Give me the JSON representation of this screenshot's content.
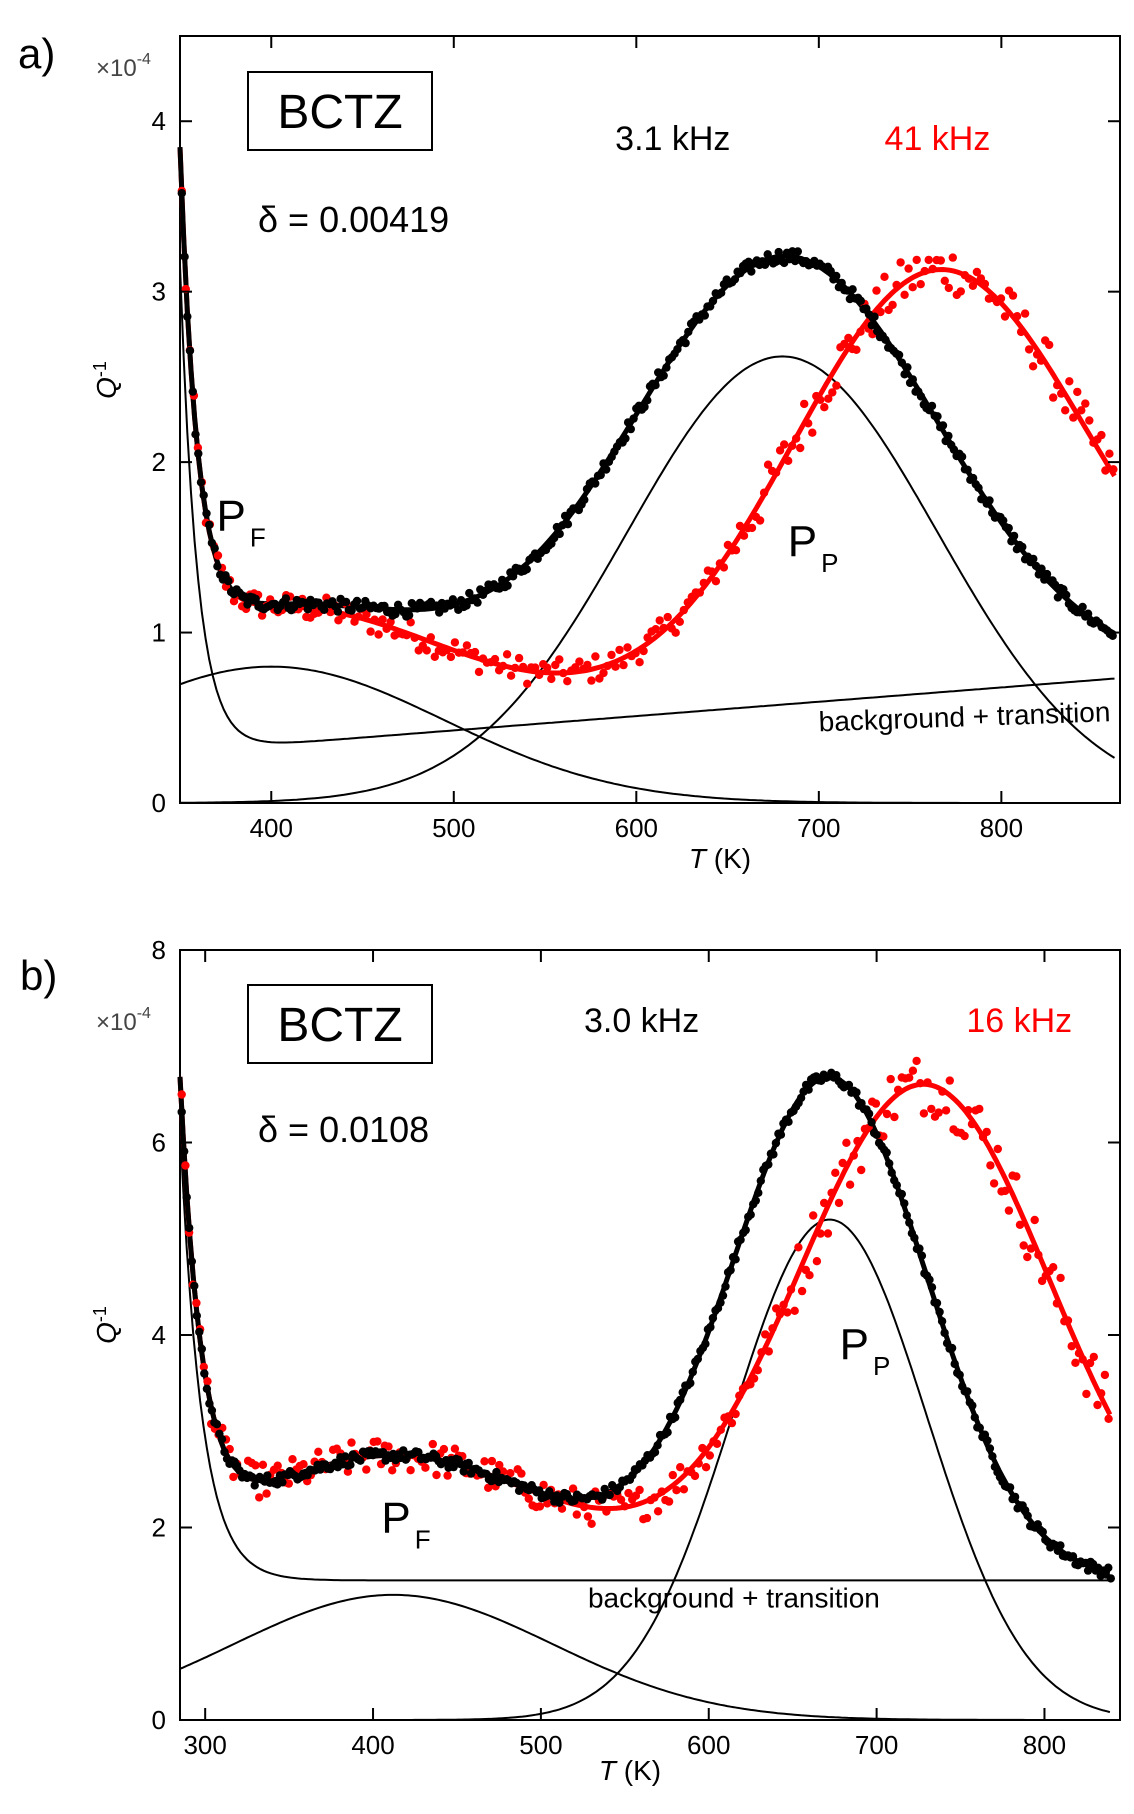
{
  "chart_data": [
    {
      "panel_label": "a)",
      "type": "scatter",
      "box_label": "BCTZ",
      "delta_text": "δ = 0.00419",
      "multiplier_text": "×10",
      "multiplier_exp": "-4",
      "xlabel_italic": "T",
      "xlabel_unit": " (K)",
      "ylabel_main": "Q",
      "ylabel_sup": "-1",
      "xlim": [
        350,
        865
      ],
      "ylim": [
        0,
        4.5
      ],
      "xticks": [
        400,
        500,
        600,
        700,
        800
      ],
      "yticks": [
        0,
        1,
        2,
        3,
        4
      ],
      "peak_labels": [
        {
          "main": "P",
          "sub": "F",
          "x": 370,
          "y": 1.6
        },
        {
          "main": "P",
          "sub": "P",
          "x": 683,
          "y": 1.45
        }
      ],
      "background_label": {
        "text": "background + transition",
        "x": 780,
        "y": 0.45
      },
      "series": [
        {
          "name": "3.1 kHz",
          "color": "#000000",
          "label_x": 620,
          "label_y": 3.83,
          "b0": 0.3,
          "b1": 0.00084,
          "c_amp": 2.85,
          "c_tau": 9.5,
          "tmin": 350,
          "pf_amp": 0.8,
          "pf_center": 400,
          "pf_width": 95,
          "pp_amp": 2.62,
          "pp_center": 680,
          "pp_width": 85,
          "data_range": [
            350,
            862
          ],
          "noise": 0.04
        }
      ],
      "series_red": [
        {
          "name": "41 kHz",
          "color": "#ff0000",
          "label_x": 765,
          "label_y": 3.83,
          "b0": 0.3,
          "b1": 0.00084,
          "c_amp": 2.85,
          "c_tau": 9.5,
          "tmin": 350,
          "pf_amp": 0.8,
          "pf_center": 400,
          "pf_width": 95,
          "pp_amp": 2.48,
          "pp_center": 765,
          "pp_width": 80,
          "data_range": [
            350,
            862
          ],
          "noise": 0.08
        }
      ]
    },
    {
      "panel_label": "b)",
      "type": "scatter",
      "box_label": "BCTZ",
      "delta_text": "δ = 0.0108",
      "multiplier_text": "×10",
      "multiplier_exp": "-4",
      "xlabel_italic": "T",
      "xlabel_unit": " (K)",
      "ylabel_main": "Q",
      "ylabel_sup": "-1",
      "xlim": [
        285,
        845
      ],
      "ylim": [
        0,
        8
      ],
      "xticks": [
        300,
        400,
        500,
        600,
        700,
        800
      ],
      "yticks": [
        0,
        2,
        4,
        6,
        8
      ],
      "peak_labels": [
        {
          "main": "P",
          "sub": "F",
          "x": 405,
          "y": 1.95
        },
        {
          "main": "P",
          "sub": "P",
          "x": 678,
          "y": 3.75
        }
      ],
      "background_label": {
        "text": "background + transition",
        "x": 615,
        "y": 1.17
      },
      "series": [
        {
          "name": "3.0 kHz",
          "color": "#000000",
          "label_x": 560,
          "label_y": 7.15,
          "b0": 1.45,
          "b1": 0,
          "c_amp": 4.7,
          "c_tau": 13,
          "tmin": 285,
          "pf_amp": 1.3,
          "pf_center": 412,
          "pf_width": 95,
          "pp_amp": 5.2,
          "pp_center": 672,
          "pp_width": 58,
          "data_range": [
            285,
            840
          ],
          "noise": 0.06
        }
      ],
      "series_red": [
        {
          "name": "16 kHz",
          "color": "#ff0000",
          "label_x": 785,
          "label_y": 7.15,
          "b0": 1.45,
          "b1": 0,
          "c_amp": 4.7,
          "c_tau": 13,
          "tmin": 285,
          "pf_amp": 1.3,
          "pf_center": 412,
          "pf_width": 95,
          "pp_amp": 5.15,
          "pp_center": 728,
          "pp_width": 75,
          "data_range": [
            285,
            840
          ],
          "noise": 0.18
        }
      ]
    }
  ]
}
